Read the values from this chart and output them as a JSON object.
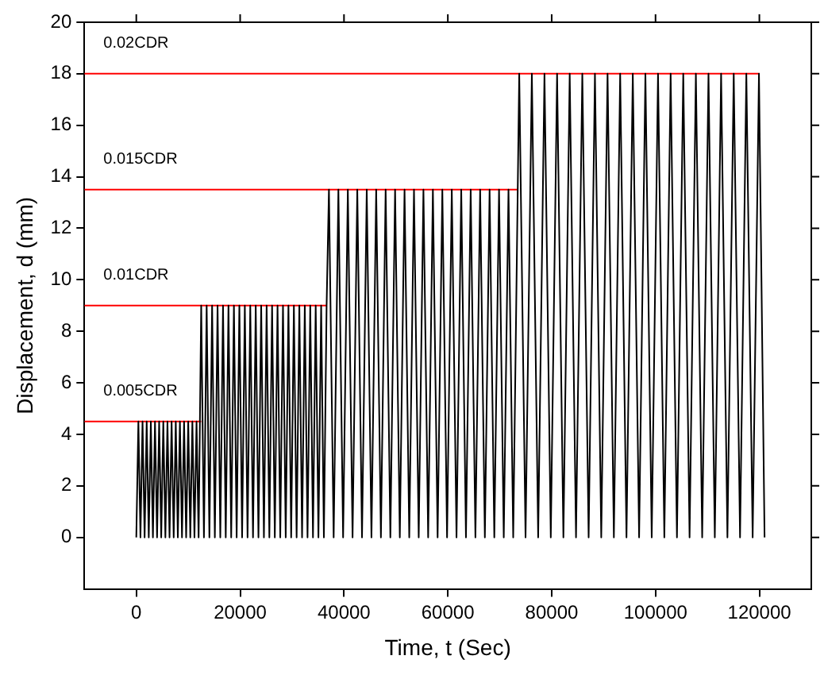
{
  "chart_data": {
    "type": "line",
    "xlabel": "Time, t (Sec)",
    "ylabel": "Displacement, d (mm)",
    "xlim": [
      -10000,
      130000
    ],
    "xticks": [
      0,
      20000,
      40000,
      60000,
      80000,
      100000,
      120000
    ],
    "ylim": [
      -2,
      20
    ],
    "yticks": [
      0,
      2,
      4,
      6,
      8,
      10,
      12,
      14,
      16,
      18,
      20
    ],
    "grid": false,
    "legend": false,
    "series": [
      {
        "color": "#000000",
        "x": [
          0,
          400,
          800,
          1200,
          1600,
          2000,
          2400,
          2800,
          3200,
          3600,
          4000,
          4400,
          4800,
          5200,
          5600,
          6000,
          6400,
          6800,
          7200,
          7600,
          8000,
          8400,
          8800,
          9200,
          9600,
          10000,
          10400,
          10800,
          11200,
          11600,
          12000,
          12500,
          13025,
          13550,
          14075,
          14600,
          15125,
          15650,
          16175,
          16700,
          17225,
          17750,
          18275,
          18800,
          19325,
          19850,
          20375,
          20900,
          21425,
          21950,
          22475,
          23000,
          23525,
          24050,
          24575,
          25100,
          25625,
          26150,
          26675,
          27200,
          27725,
          28250,
          28775,
          29300,
          29825,
          30350,
          30875,
          31400,
          31925,
          32450,
          32975,
          33500,
          34025,
          34550,
          35075,
          35600,
          36125,
          36650,
          37100,
          38010,
          38920,
          39830,
          40740,
          41650,
          42560,
          43470,
          44380,
          45290,
          46200,
          47110,
          48020,
          48930,
          49840,
          50750,
          51660,
          52570,
          53480,
          54390,
          55300,
          56210,
          57120,
          58030,
          58940,
          59850,
          60760,
          61670,
          62580,
          63490,
          64400,
          65310,
          66220,
          67130,
          68040,
          68950,
          69860,
          70770,
          71680,
          72590,
          73750,
          74965,
          76180,
          77395,
          78610,
          79825,
          81040,
          82255,
          83470,
          84685,
          85900,
          87115,
          88330,
          89545,
          90760,
          91975,
          93190,
          94405,
          95620,
          96835,
          98050,
          99265,
          100480,
          101695,
          102910,
          104125,
          105340,
          106555,
          107770,
          108985,
          110200,
          111415,
          112630,
          113845,
          115060,
          116275,
          117490,
          118705,
          119920,
          121000
        ],
        "values": [
          0,
          4.5,
          0,
          4.5,
          0,
          4.5,
          0,
          4.5,
          0,
          4.5,
          0,
          4.5,
          0,
          4.5,
          0,
          4.5,
          0,
          4.5,
          0,
          4.5,
          0,
          4.5,
          0,
          4.5,
          0,
          4.5,
          0,
          4.5,
          0,
          4.5,
          0,
          9,
          0,
          9,
          0,
          9,
          0,
          9,
          0,
          9,
          0,
          9,
          0,
          9,
          0,
          9,
          0,
          9,
          0,
          9,
          0,
          9,
          0,
          9,
          0,
          9,
          0,
          9,
          0,
          9,
          0,
          9,
          0,
          9,
          0,
          9,
          0,
          9,
          0,
          9,
          0,
          9,
          0,
          9,
          0,
          9,
          0,
          9,
          13.5,
          0,
          13.5,
          0,
          13.5,
          0,
          13.5,
          0,
          13.5,
          0,
          13.5,
          0,
          13.5,
          0,
          13.5,
          0,
          13.5,
          0,
          13.5,
          0,
          13.5,
          0,
          13.5,
          0,
          13.5,
          0,
          13.5,
          0,
          13.5,
          0,
          13.5,
          0,
          13.5,
          0,
          13.5,
          0,
          13.5,
          0,
          13.5,
          0,
          18,
          0,
          18,
          0,
          18,
          0,
          18,
          0,
          18,
          0,
          18,
          0,
          18,
          0,
          18,
          0,
          18,
          0,
          18,
          0,
          18,
          0,
          18,
          0,
          18,
          0,
          18,
          0,
          18,
          0,
          18,
          0,
          18,
          0,
          18,
          0,
          18,
          0,
          18,
          0
        ]
      },
      {
        "name": "0.005CDR",
        "color": "#ff0000",
        "x": [
          -10000,
          12500
        ],
        "values": [
          4.5,
          4.5
        ]
      },
      {
        "name": "0.01CDR",
        "color": "#ff0000",
        "x": [
          -10000,
          36650
        ],
        "values": [
          9,
          9
        ]
      },
      {
        "name": "0.015CDR",
        "color": "#ff0000",
        "x": [
          -10000,
          73400
        ],
        "values": [
          13.5,
          13.5
        ]
      },
      {
        "name": "0.02CDR",
        "color": "#ff0000",
        "x": [
          -10000,
          120000
        ],
        "values": [
          18,
          18
        ]
      }
    ]
  }
}
